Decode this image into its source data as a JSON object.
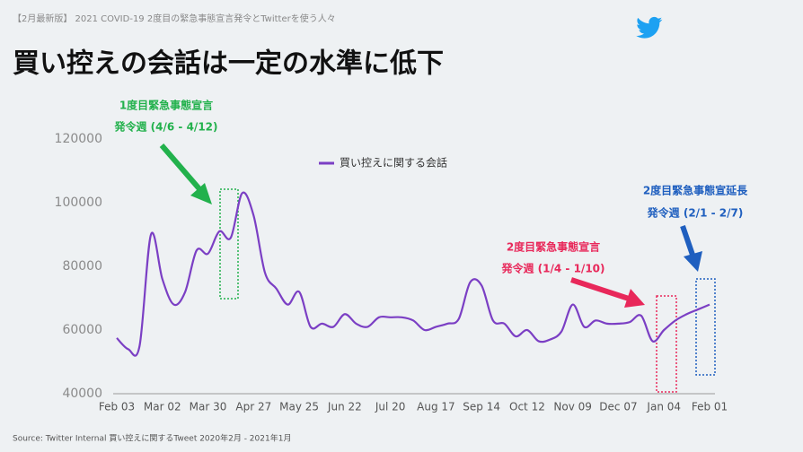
{
  "header": "【2月最新版】 2021 COVID-19 2度目の緊急事態宣言発令とTwitterを使う人々",
  "source": "Source: Twitter Internal 買い控えに関するTweet 2020年2月 - 2021年1月",
  "chart_data": {
    "type": "line",
    "title": "買い控えの会話は一定の水準に低下",
    "categories": [
      "Feb 03",
      null,
      null,
      null,
      "Mar 02",
      null,
      null,
      null,
      "Mar 30",
      null,
      null,
      null,
      "Apr 27",
      null,
      null,
      null,
      "May 25",
      null,
      null,
      null,
      "Jun 22",
      null,
      null,
      null,
      "Jul 20",
      null,
      null,
      null,
      "Aug 17",
      null,
      null,
      null,
      "Sep 14",
      null,
      null,
      null,
      "Oct 12",
      null,
      null,
      null,
      "Nov 09",
      null,
      null,
      null,
      "Dec 07",
      null,
      null,
      null,
      "Jan 04",
      null,
      null,
      null,
      "Feb 01"
    ],
    "series": [
      {
        "name": "買い控えに関する会話",
        "color": "#7b3fc4",
        "values": [
          57500,
          54000,
          55000,
          90000,
          76000,
          68000,
          72000,
          85000,
          84000,
          91000,
          89000,
          103000,
          96000,
          78000,
          73000,
          68000,
          72000,
          61000,
          62000,
          61000,
          65000,
          62000,
          61000,
          64000,
          64000,
          64000,
          63000,
          60000,
          61000,
          62000,
          63500,
          75000,
          74000,
          63000,
          62000,
          58000,
          60000,
          56500,
          57000,
          59500,
          68000,
          61000,
          63000,
          62000,
          62000,
          62500,
          64500,
          56500,
          60000,
          63000,
          65000,
          66500,
          68000
        ]
      }
    ],
    "ylim": [
      40000,
      120000
    ],
    "yticks": [
      40000,
      60000,
      80000,
      100000,
      120000
    ],
    "grid": false,
    "annotations": [
      {
        "lines": [
          "1度目緊急事態宣言",
          "発令週 (4/6 - 4/12)"
        ],
        "color": "#22b14c"
      },
      {
        "lines": [
          "2度目緊急事態宣言",
          "発令週 (1/4 - 1/10)"
        ],
        "color": "#e8285a"
      },
      {
        "lines": [
          "2度目緊急事態宣延長",
          "発令週 (2/1 - 2/7)"
        ],
        "color": "#1f5fbf"
      }
    ]
  }
}
